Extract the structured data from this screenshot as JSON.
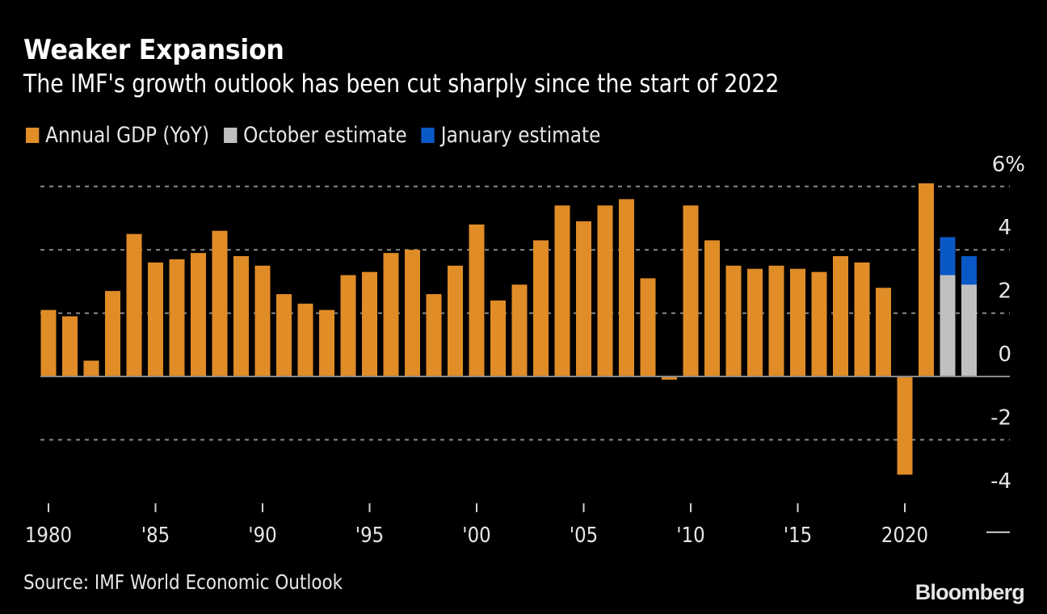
{
  "header": {
    "title": "Weaker Expansion",
    "subtitle": "The IMF's growth outlook has been cut sharply since the start of 2022"
  },
  "legend": [
    {
      "label": "Annual GDP (YoY)",
      "color": "#E08C27"
    },
    {
      "label": "October estimate",
      "color": "#C0C0C0"
    },
    {
      "label": "January estimate",
      "color": "#0A58C6"
    }
  ],
  "footer": {
    "source": "Source: IMF World Economic Outlook",
    "brand": "Bloomberg"
  },
  "chart_data": {
    "type": "bar",
    "title": "Weaker Expansion",
    "subtitle": "The IMF's growth outlook has been cut sharply since the start of 2022",
    "xlabel": "",
    "ylabel": "",
    "ylim": [
      -4,
      6
    ],
    "y_ticks": [
      {
        "value": 6,
        "label": "6%"
      },
      {
        "value": 4,
        "label": "4"
      },
      {
        "value": 2,
        "label": "2"
      },
      {
        "value": 0,
        "label": "0"
      },
      {
        "value": -2,
        "label": "-2"
      },
      {
        "value": -4,
        "label": "-4"
      }
    ],
    "y_axis_side": "right",
    "grid": "horizontal dotted",
    "legend_position": "top-left",
    "x_ticks": [
      {
        "year": 1980,
        "label": "1980"
      },
      {
        "year": 1985,
        "label": "'85"
      },
      {
        "year": 1990,
        "label": "'90"
      },
      {
        "year": 1995,
        "label": "'95"
      },
      {
        "year": 2000,
        "label": "'00"
      },
      {
        "year": 2005,
        "label": "'05"
      },
      {
        "year": 2010,
        "label": "'10"
      },
      {
        "year": 2015,
        "label": "'15"
      },
      {
        "year": 2020,
        "label": "2020"
      }
    ],
    "series": [
      {
        "name": "Annual GDP (YoY)",
        "color": "#E08C27",
        "points": [
          {
            "year": 1980,
            "value": 2.1
          },
          {
            "year": 1981,
            "value": 1.9
          },
          {
            "year": 1982,
            "value": 0.5
          },
          {
            "year": 1983,
            "value": 2.7
          },
          {
            "year": 1984,
            "value": 4.5
          },
          {
            "year": 1985,
            "value": 3.6
          },
          {
            "year": 1986,
            "value": 3.7
          },
          {
            "year": 1987,
            "value": 3.9
          },
          {
            "year": 1988,
            "value": 4.6
          },
          {
            "year": 1989,
            "value": 3.8
          },
          {
            "year": 1990,
            "value": 3.5
          },
          {
            "year": 1991,
            "value": 2.6
          },
          {
            "year": 1992,
            "value": 2.3
          },
          {
            "year": 1993,
            "value": 2.1
          },
          {
            "year": 1994,
            "value": 3.2
          },
          {
            "year": 1995,
            "value": 3.3
          },
          {
            "year": 1996,
            "value": 3.9
          },
          {
            "year": 1997,
            "value": 4.0
          },
          {
            "year": 1998,
            "value": 2.6
          },
          {
            "year": 1999,
            "value": 3.5
          },
          {
            "year": 2000,
            "value": 4.8
          },
          {
            "year": 2001,
            "value": 2.4
          },
          {
            "year": 2002,
            "value": 2.9
          },
          {
            "year": 2003,
            "value": 4.3
          },
          {
            "year": 2004,
            "value": 5.4
          },
          {
            "year": 2005,
            "value": 4.9
          },
          {
            "year": 2006,
            "value": 5.4
          },
          {
            "year": 2007,
            "value": 5.6
          },
          {
            "year": 2008,
            "value": 3.1
          },
          {
            "year": 2009,
            "value": -0.1
          },
          {
            "year": 2010,
            "value": 5.4
          },
          {
            "year": 2011,
            "value": 4.3
          },
          {
            "year": 2012,
            "value": 3.5
          },
          {
            "year": 2013,
            "value": 3.4
          },
          {
            "year": 2014,
            "value": 3.5
          },
          {
            "year": 2015,
            "value": 3.4
          },
          {
            "year": 2016,
            "value": 3.3
          },
          {
            "year": 2017,
            "value": 3.8
          },
          {
            "year": 2018,
            "value": 3.6
          },
          {
            "year": 2019,
            "value": 2.8
          },
          {
            "year": 2020,
            "value": -3.1
          },
          {
            "year": 2021,
            "value": 6.1
          }
        ]
      },
      {
        "name": "October estimate",
        "color": "#C0C0C0",
        "points": [
          {
            "year": 2022,
            "value": 3.2
          },
          {
            "year": 2023,
            "value": 2.9
          }
        ]
      },
      {
        "name": "January estimate",
        "color": "#0A58C6",
        "stacked_top_total": true,
        "points": [
          {
            "year": 2022,
            "value": 4.4
          },
          {
            "year": 2023,
            "value": 3.8
          }
        ]
      }
    ]
  }
}
